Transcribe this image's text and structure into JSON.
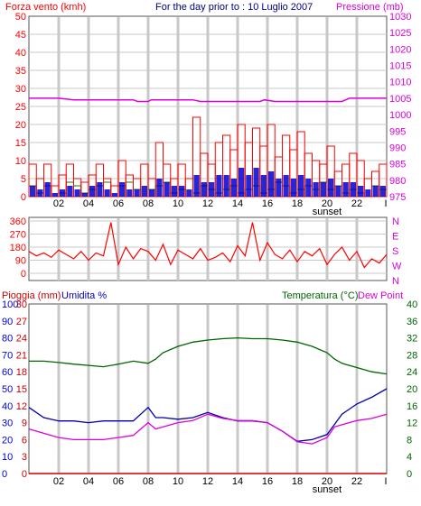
{
  "header": {
    "left_label": "Forza vento (kmh)",
    "center_label": "For the day prior to : 10 Luglio 2007",
    "right_label": "Pressione (mb)"
  },
  "colors": {
    "frame": "#555555",
    "grid": "#c8c8c8",
    "bg": "#ffffff",
    "wind_gust": "#ff0000",
    "wind_avg": "#0000cc",
    "wind_calm": "#008000",
    "pressure": "#dd00dd",
    "direction": "#ff0000",
    "temperature": "#006400",
    "humidity": "#0000aa",
    "dewpoint": "#dd00dd",
    "rain": "#cc0000",
    "left_axis_text": "#ff0000",
    "right_axis_text": "#dd00dd",
    "temp_axis_text": "#006400",
    "humidity_axis_text": "#0000cc"
  },
  "time_axis": {
    "ticks": [
      "02",
      "04",
      "06",
      "08",
      "10",
      "12",
      "14",
      "16",
      "18",
      "20",
      "22"
    ],
    "sunset_label": "sunset",
    "end_mark": "I"
  },
  "chart_data": [
    {
      "id": "wind-pressure",
      "type": "bar",
      "title": "For the day prior to : 10 Luglio 2007",
      "ylabel_left": "Forza vento (kmh)",
      "ylabel_right": "Pressione (mb)",
      "y_left_ticks": [
        0,
        5,
        10,
        15,
        20,
        25,
        30,
        35,
        40,
        45,
        50
      ],
      "y_right_ticks": [
        975,
        980,
        985,
        990,
        995,
        1000,
        1005,
        1010,
        1015,
        1020,
        1025,
        1030
      ],
      "ylim_left": [
        0,
        50
      ],
      "ylim_right": [
        975,
        1030
      ],
      "x_hours": [
        0,
        0.5,
        1,
        1.5,
        2,
        2.5,
        3,
        3.5,
        4,
        4.5,
        5,
        5.5,
        6,
        6.5,
        7,
        7.5,
        8,
        8.5,
        9,
        9.5,
        10,
        10.5,
        11,
        11.5,
        12,
        12.5,
        13,
        13.5,
        14,
        14.5,
        15,
        15.5,
        16,
        16.5,
        17,
        17.5,
        18,
        18.5,
        19,
        19.5,
        20,
        20.5,
        21,
        21.5,
        22,
        22.5,
        23,
        23.5
      ],
      "wind_gust_kmh": [
        9,
        5,
        9,
        3,
        6,
        9,
        5,
        4,
        6,
        9,
        5,
        3,
        10,
        6,
        5,
        9,
        5,
        15,
        9,
        5,
        9,
        5,
        22,
        12,
        9,
        15,
        17,
        13,
        20,
        15,
        19,
        14,
        20,
        11,
        17,
        13,
        18,
        12,
        10,
        9,
        14,
        7,
        9,
        12,
        10,
        5,
        7,
        9
      ],
      "wind_avg_kmh": [
        3,
        2,
        4,
        1,
        2,
        3,
        2,
        1,
        3,
        4,
        2,
        1,
        4,
        2,
        2,
        3,
        2,
        5,
        4,
        3,
        3,
        2,
        6,
        4,
        4,
        6,
        6,
        5,
        8,
        6,
        8,
        6,
        7,
        5,
        6,
        5,
        6,
        5,
        4,
        4,
        5,
        3,
        4,
        4,
        3,
        2,
        3,
        3
      ],
      "wind_calm_kmh": [
        3,
        1,
        3,
        0,
        1,
        4,
        3,
        1,
        2,
        3,
        4,
        0,
        3,
        4,
        2,
        0,
        2,
        3,
        4,
        1,
        2,
        0,
        1,
        3,
        2,
        1,
        2,
        3,
        1,
        2,
        3,
        1,
        2,
        4,
        3,
        1,
        2,
        3,
        2,
        4,
        2,
        3,
        1,
        2,
        1,
        0,
        3,
        2
      ],
      "pressure_x_hours": [
        0,
        2,
        3,
        7,
        7.3,
        8,
        8.2,
        9,
        11,
        11.5,
        15.5,
        15.8,
        16.5,
        21,
        21.5,
        22,
        24
      ],
      "pressure_mb": [
        1005,
        1005,
        1004.5,
        1004.5,
        1004,
        1004,
        1004.5,
        1004.5,
        1004.5,
        1004,
        1004,
        1004.5,
        1004,
        1004,
        1005,
        1005,
        1005
      ]
    },
    {
      "id": "wind-direction",
      "type": "line",
      "y_ticks": [
        0,
        90,
        180,
        270,
        360
      ],
      "ylim": [
        0,
        360
      ],
      "compass_labels": [
        "N",
        "W",
        "S",
        "E",
        "N"
      ],
      "x_hours": [
        0,
        0.5,
        1,
        1.5,
        2,
        2.5,
        3,
        3.5,
        4,
        4.5,
        5,
        5.5,
        6,
        6.5,
        7,
        7.5,
        8,
        8.5,
        9,
        9.5,
        10,
        10.5,
        11,
        11.5,
        12,
        12.5,
        13,
        13.5,
        14,
        14.5,
        15,
        15.5,
        16,
        16.5,
        17,
        17.5,
        18,
        18.5,
        19,
        19.5,
        20,
        20.5,
        21,
        21.5,
        22,
        22.5,
        23,
        23.5,
        24
      ],
      "degrees": [
        150,
        120,
        140,
        110,
        160,
        130,
        100,
        150,
        90,
        140,
        120,
        350,
        60,
        180,
        100,
        170,
        150,
        90,
        200,
        60,
        160,
        130,
        100,
        170,
        90,
        110,
        140,
        80,
        190,
        120,
        350,
        90,
        210,
        130,
        100,
        160,
        80,
        150,
        120,
        170,
        60,
        130,
        180,
        90,
        150,
        40,
        100,
        70,
        130
      ]
    },
    {
      "id": "temp-humidity-rain",
      "type": "line",
      "header_left": [
        "Pioggia (mm)",
        "Umidita %"
      ],
      "header_right": [
        "Temperatura (°C)",
        "Dew Point"
      ],
      "rain_ticks": [
        0,
        3,
        6,
        9,
        12,
        15,
        18,
        21,
        24,
        27,
        30
      ],
      "humidity_ticks": [
        0,
        10,
        20,
        30,
        40,
        50,
        60,
        70,
        80,
        90,
        100
      ],
      "temp_ticks": [
        0,
        4,
        8,
        12,
        16,
        20,
        24,
        28,
        32,
        36,
        40
      ],
      "ylim_temp": [
        0,
        40
      ],
      "ylim_humidity": [
        0,
        100
      ],
      "ylim_rain": [
        0,
        30
      ],
      "x_hours": [
        0,
        1,
        2,
        3,
        4,
        5,
        6,
        7,
        8,
        8.5,
        9,
        10,
        11,
        12,
        13,
        14,
        15,
        16,
        17,
        18,
        19,
        20,
        20.5,
        21,
        22,
        23,
        24
      ],
      "temperature_c": [
        26.5,
        26.5,
        26.2,
        25.8,
        25.5,
        25.2,
        25.8,
        26.5,
        26.0,
        27.0,
        28.5,
        30.0,
        31.0,
        31.5,
        31.8,
        32.0,
        31.8,
        31.8,
        31.5,
        31.0,
        30.0,
        28.5,
        27.0,
        26.0,
        25.0,
        24.0,
        23.5
      ],
      "humidity_pct": [
        39,
        33,
        31,
        31,
        30,
        31,
        31,
        31,
        39,
        33,
        33,
        32,
        33,
        36,
        33,
        31,
        31,
        30,
        25,
        19,
        20,
        23,
        29,
        35,
        41,
        45,
        50
      ],
      "dewpoint_c": [
        10.5,
        9.5,
        8.5,
        8.0,
        8.0,
        8.0,
        8.5,
        9.0,
        12.0,
        10.5,
        11.0,
        12.0,
        12.5,
        14.0,
        13.0,
        12.5,
        12.5,
        12.0,
        10.0,
        7.5,
        7.0,
        8.5,
        11.0,
        11.5,
        12.5,
        13.0,
        14.0
      ],
      "rain_mm": [
        0,
        0,
        0,
        0,
        0,
        0,
        0,
        0,
        0,
        0,
        0,
        0,
        0,
        0,
        0,
        0,
        0,
        0,
        0,
        0,
        0,
        0,
        0,
        0,
        0,
        0,
        0
      ]
    }
  ]
}
